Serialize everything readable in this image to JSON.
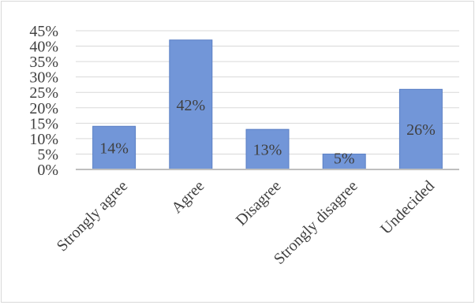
{
  "chart_data": {
    "type": "bar",
    "title": "",
    "xlabel": "",
    "ylabel": "",
    "categories": [
      "Strongly agree",
      "Agree",
      "Disagree",
      "Strongly disagree",
      "Undecided"
    ],
    "values": [
      14,
      42,
      13,
      5,
      26
    ],
    "data_labels": [
      "14%",
      "42%",
      "13%",
      "5%",
      "26%"
    ],
    "yticks": [
      "0%",
      "5%",
      "10%",
      "15%",
      "20%",
      "25%",
      "30%",
      "35%",
      "40%",
      "45%"
    ],
    "ylim": [
      0,
      45
    ],
    "grid": true,
    "legend": "none",
    "bar_color": "#7296d8",
    "bar_edge_color": "#5a7fc4",
    "axis_color": "#bfbfbf"
  }
}
